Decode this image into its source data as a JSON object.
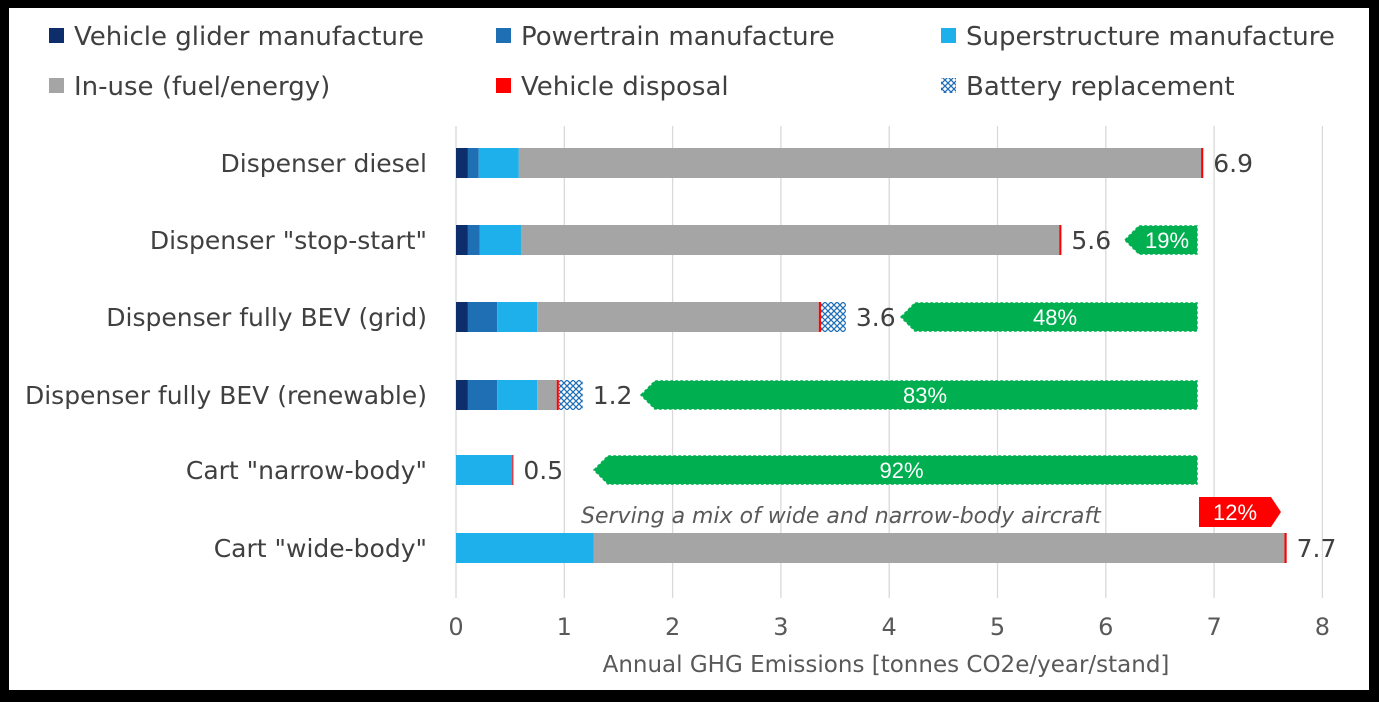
{
  "chart_data": {
    "type": "bar",
    "orientation": "horizontal",
    "stacked": true,
    "xlabel": "Annual GHG Emissions [tonnes CO2e/year/stand]",
    "xlim": [
      0,
      8
    ],
    "xticks": [
      "0",
      "1",
      "2",
      "3",
      "4",
      "5",
      "6",
      "7",
      "8"
    ],
    "grid": "vertical",
    "legend_position": "top",
    "categories": [
      "Dispenser diesel",
      "Dispenser \"stop-start\"",
      "Dispenser fully BEV (grid)",
      "Dispenser fully BEV (renewable)",
      "Cart \"narrow-body\"",
      "Cart \"wide-body\""
    ],
    "series": [
      {
        "name": "Vehicle glider manufacture",
        "color": "#0d2d6b",
        "values": [
          0.11,
          0.11,
          0.11,
          0.11,
          0.0,
          0.0
        ]
      },
      {
        "name": "Powertrain manufacture",
        "color": "#1f6fb5",
        "values": [
          0.1,
          0.11,
          0.27,
          0.27,
          0.0,
          0.0
        ]
      },
      {
        "name": "Superstructure manufacture",
        "color": "#1eb0ea",
        "values": [
          0.37,
          0.38,
          0.37,
          0.37,
          0.52,
          1.27
        ]
      },
      {
        "name": "In-use (fuel/energy)",
        "color": "#a5a5a5",
        "values": [
          6.3,
          4.97,
          2.6,
          0.18,
          0.0,
          6.38
        ]
      },
      {
        "name": "Vehicle disposal",
        "color": "#ff0000",
        "values": [
          0.02,
          0.02,
          0.02,
          0.02,
          0.01,
          0.02
        ]
      },
      {
        "name": "Battery replacement",
        "color": "#1f6fb5",
        "pattern": "hatched",
        "values": [
          0.0,
          0.0,
          0.23,
          0.22,
          0.0,
          0.0
        ]
      }
    ],
    "totals": [
      "6.9",
      "5.6",
      "3.6",
      "1.2",
      "0.5",
      "7.7"
    ],
    "reductions": [
      {
        "row": 1,
        "label": "19%",
        "from": 5.6,
        "color": "#00b050"
      },
      {
        "row": 2,
        "label": "48%",
        "from": 3.6,
        "color": "#00b050"
      },
      {
        "row": 3,
        "label": "83%",
        "from": 1.2,
        "color": "#00b050"
      },
      {
        "row": 4,
        "label": "92%",
        "from": 0.5,
        "color": "#00b050"
      },
      {
        "row": 5,
        "label": "12%",
        "direction": "increase",
        "color": "#ff0000"
      }
    ],
    "annotation": "Serving a mix of wide and narrow-body aircraft"
  }
}
